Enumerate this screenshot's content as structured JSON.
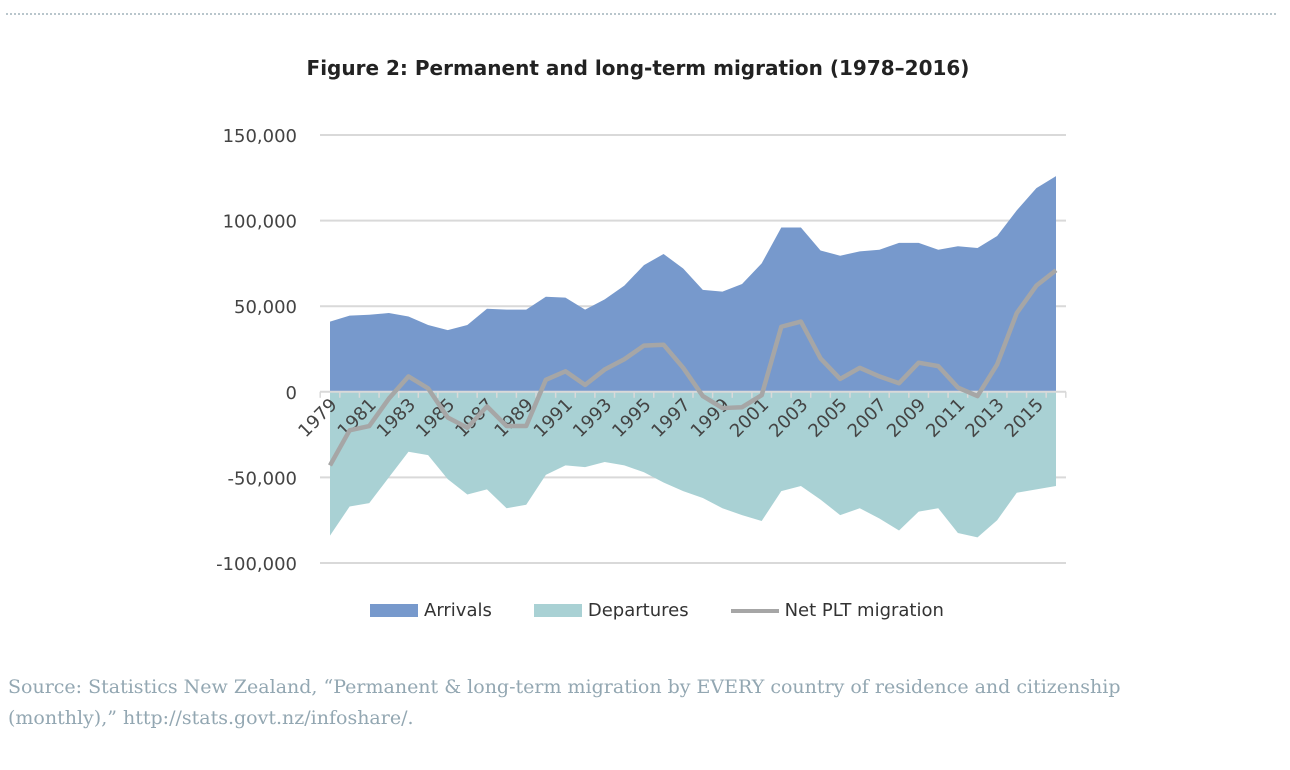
{
  "chart_data": {
    "type": "area",
    "title": "Figure 2: Permanent and long-term migration (1978–2016)",
    "xlabel": "",
    "ylabel": "",
    "ylim": [
      -100000,
      150000
    ],
    "yticks": [
      150000,
      100000,
      50000,
      0,
      -50000,
      -100000
    ],
    "ytick_labels": [
      "150,000",
      "100,000",
      "50,000",
      "0",
      "-50,000",
      "-100,000"
    ],
    "x": [
      1979,
      1980,
      1981,
      1982,
      1983,
      1984,
      1985,
      1986,
      1987,
      1988,
      1989,
      1990,
      1991,
      1992,
      1993,
      1994,
      1995,
      1996,
      1997,
      1998,
      1999,
      2000,
      2001,
      2002,
      2003,
      2004,
      2005,
      2006,
      2007,
      2008,
      2009,
      2010,
      2011,
      2012,
      2013,
      2014,
      2015,
      2016
    ],
    "xtick_labels": [
      "1979",
      "1981",
      "1983",
      "1985",
      "1987",
      "1989",
      "1991",
      "1993",
      "1995",
      "1997",
      "1999",
      "2001",
      "2003",
      "2005",
      "2007",
      "2009",
      "2011",
      "2013",
      "2015"
    ],
    "grid": true,
    "legend_position": "bottom",
    "series": [
      {
        "name": "Arrivals",
        "type": "area",
        "color": "#7799cc",
        "values": [
          41000,
          44500,
          45000,
          46000,
          44000,
          39000,
          36000,
          39000,
          48500,
          48000,
          48000,
          55500,
          55000,
          48000,
          54000,
          62000,
          74000,
          80500,
          72000,
          59500,
          58500,
          63000,
          75000,
          96000,
          96000,
          82500,
          79500,
          82000,
          83000,
          87000,
          87000,
          83000,
          85000,
          84000,
          91000,
          106000,
          119000,
          126000
        ]
      },
      {
        "name": "Departures",
        "type": "area",
        "color": "#a9d1d4",
        "values": [
          -84000,
          -67000,
          -65000,
          -50000,
          -35000,
          -37000,
          -51000,
          -60000,
          -57000,
          -68000,
          -66000,
          -48500,
          -43000,
          -44000,
          -41000,
          -43000,
          -47000,
          -53000,
          -58000,
          -62000,
          -68000,
          -72000,
          -75500,
          -58000,
          -55000,
          -63000,
          -72000,
          -68000,
          -74000,
          -81000,
          -70000,
          -68000,
          -82500,
          -85000,
          -75000,
          -59000,
          -57000,
          -55000
        ]
      },
      {
        "name": "Net PLT migration",
        "type": "line",
        "color": "#a6a6a6",
        "values": [
          -43000,
          -22500,
          -20000,
          -4000,
          9000,
          2000,
          -15000,
          -21000,
          -8500,
          -20000,
          -20000,
          7000,
          12000,
          4000,
          13000,
          19000,
          27000,
          27500,
          14000,
          -2500,
          -9500,
          -9000,
          -2000,
          38000,
          41000,
          19500,
          7500,
          14000,
          9000,
          5000,
          17000,
          15000,
          2500,
          -2500,
          16000,
          46000,
          62000,
          71000
        ]
      }
    ]
  },
  "source": "Source: Statistics New Zealand, “Permanent & long-term migration by EVERY country of residence and citizenship (monthly),” http://stats.govt.nz/infoshare/."
}
